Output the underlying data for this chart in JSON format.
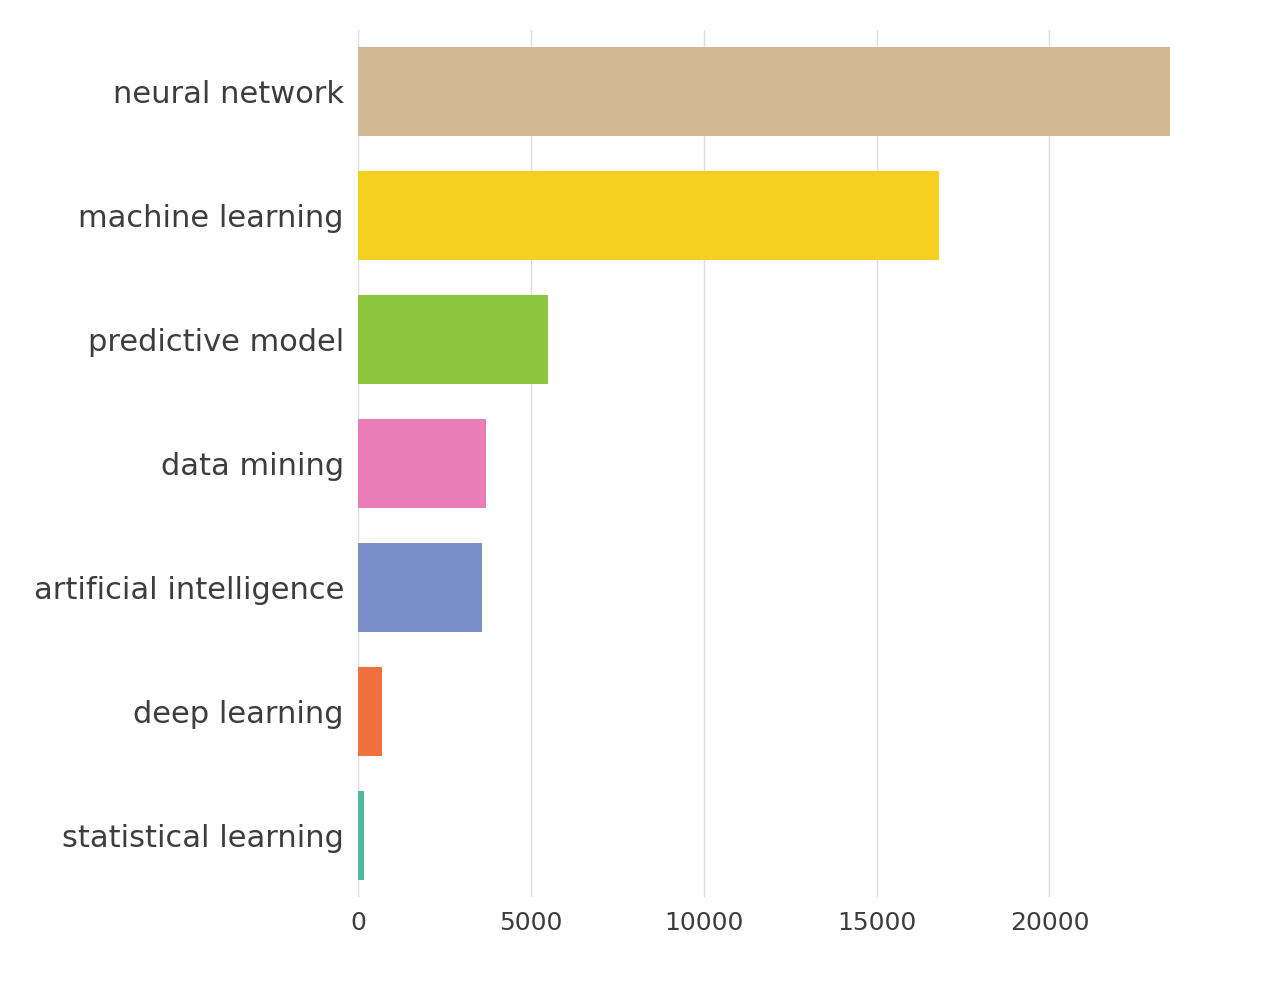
{
  "categories": [
    "neural network",
    "machine learning",
    "predictive model",
    "data mining",
    "artificial intelligence",
    "deep learning",
    "statistical learning"
  ],
  "values": [
    23500,
    16800,
    5500,
    3700,
    3600,
    700,
    180
  ],
  "bar_colors": [
    "#d4b896",
    "#f5d020",
    "#8dc63f",
    "#e87db8",
    "#7b8ec8",
    "#f07040",
    "#4db89c"
  ],
  "background_color": "#ffffff",
  "grid_color": "#dddddd",
  "text_color": "#3d3d3d",
  "xlim": [
    0,
    25500
  ],
  "xtick_values": [
    0,
    5000,
    10000,
    15000,
    20000
  ],
  "bar_height": 0.72,
  "figsize": [
    12.78,
    9.97
  ],
  "dpi": 100,
  "label_fontsize": 22,
  "tick_fontsize": 18
}
